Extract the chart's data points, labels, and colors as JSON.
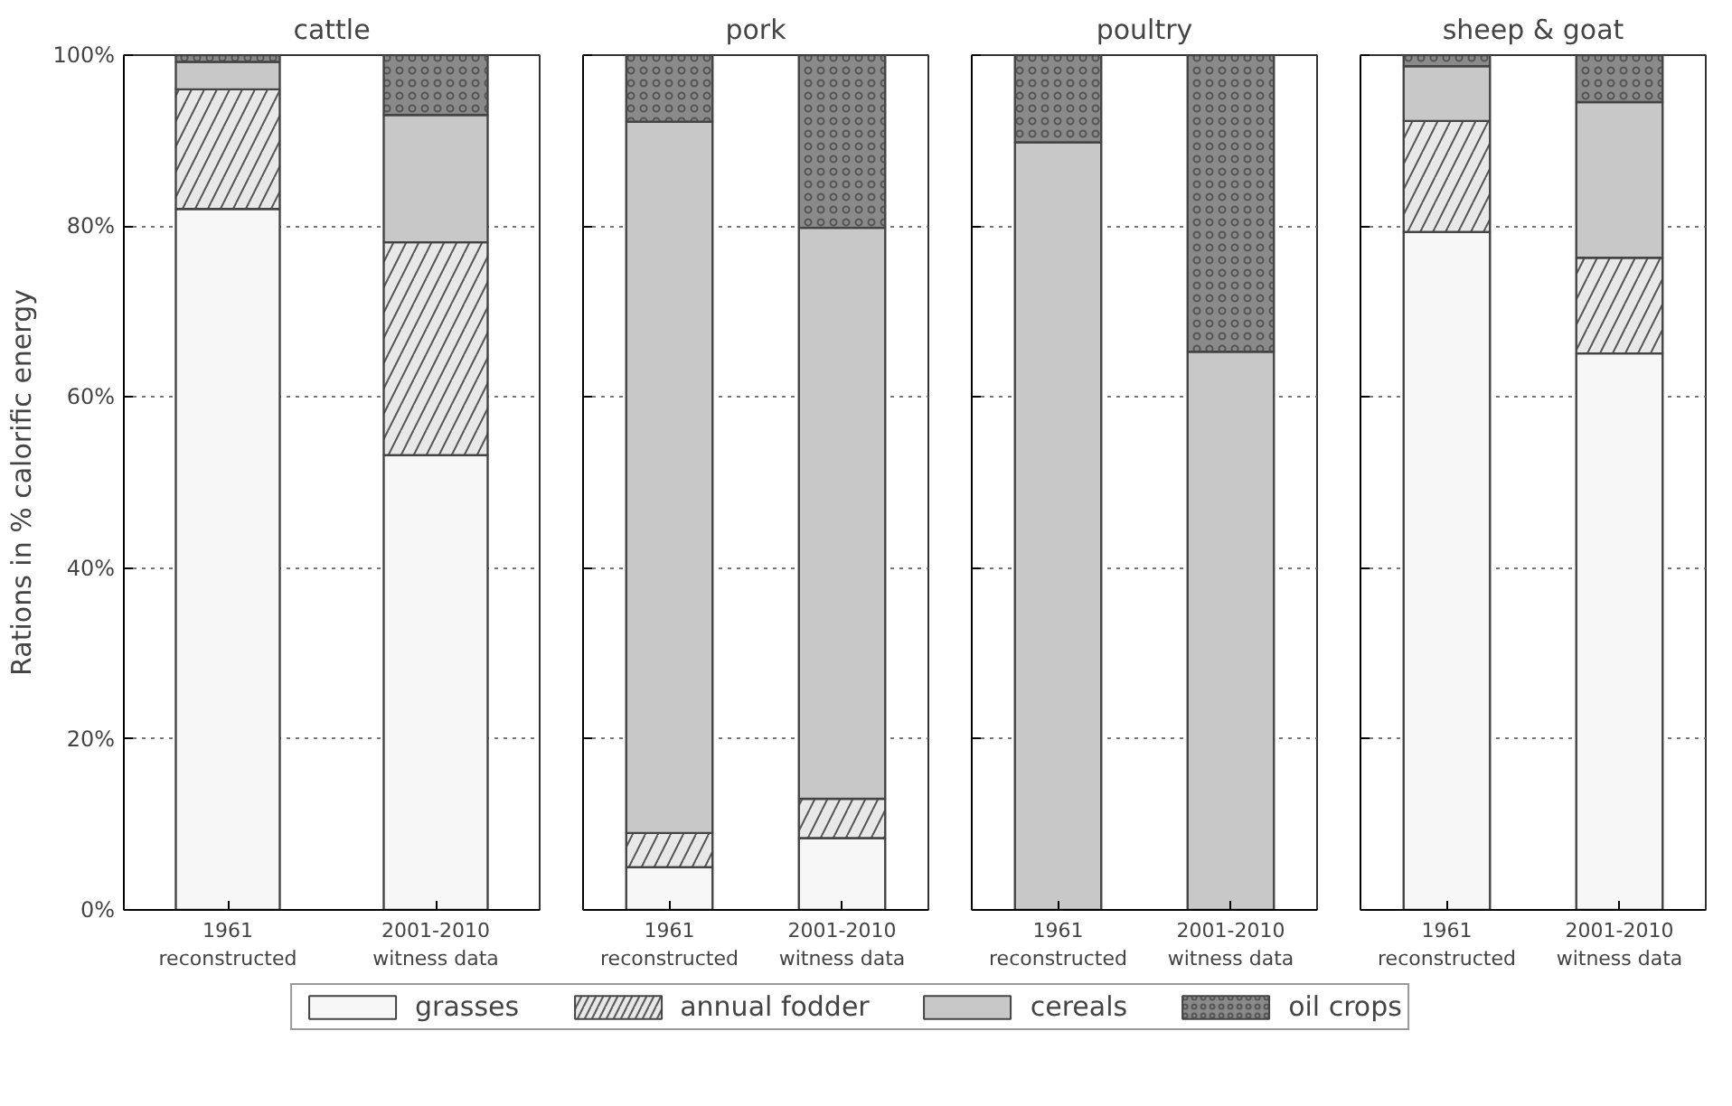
{
  "chart_data": [
    {
      "type": "bar",
      "title": "cattle",
      "ylabel": "Rations in % calorific energy",
      "categories": [
        "1961\nreconstructed",
        "2001-2010\nwitness data"
      ],
      "stacked": true,
      "ylim": [
        0,
        100
      ],
      "yticks": [
        {
          "value": 0,
          "label": "0%"
        },
        {
          "value": 20,
          "label": "20%"
        },
        {
          "value": 40,
          "label": "40%"
        },
        {
          "value": 60,
          "label": "60%"
        },
        {
          "value": 80,
          "label": "80%"
        },
        {
          "value": 100,
          "label": "100%"
        }
      ],
      "grid": true,
      "legend": "bottom",
      "series": [
        {
          "name": "grasses",
          "color": "#f7f7f7",
          "values": [
            82.0,
            53.2
          ]
        },
        {
          "name": "annual fodder",
          "color": "#e8e8e8",
          "values": [
            14.0,
            24.9
          ]
        },
        {
          "name": "cereals",
          "color": "#c8c8c8",
          "values": [
            3.2,
            14.9
          ]
        },
        {
          "name": "oil crops",
          "color": "#8a8a8a",
          "values": [
            0.8,
            7.0
          ]
        }
      ]
    },
    {
      "type": "bar",
      "title": "pork",
      "categories": [
        "1961\nreconstructed",
        "2001-2010\nwitness data"
      ],
      "stacked": true,
      "ylim": [
        0,
        100
      ],
      "yticks": [
        {
          "value": 0,
          "label": null
        },
        {
          "value": 20,
          "label": null
        },
        {
          "value": 40,
          "label": null
        },
        {
          "value": 60,
          "label": null
        },
        {
          "value": 80,
          "label": null
        },
        {
          "value": 100,
          "label": null
        }
      ],
      "grid": true,
      "tick_labels": "x",
      "series": [
        {
          "color": "#f7f7f7",
          "values": [
            5.0,
            8.4
          ]
        },
        {
          "color": "#e8e8e8",
          "values": [
            4.0,
            4.6
          ]
        },
        {
          "color": "#c8c8c8",
          "values": [
            83.2,
            66.8
          ]
        },
        {
          "color": "#8a8a8a",
          "values": [
            7.8,
            20.2
          ]
        }
      ]
    },
    {
      "type": "bar",
      "title": "poultry",
      "categories": [
        "1961\nreconstructed",
        "2001-2010\nwitness data"
      ],
      "stacked": true,
      "ylim": [
        0,
        100
      ],
      "yticks": [
        {
          "value": 0,
          "label": null
        },
        {
          "value": 20,
          "label": null
        },
        {
          "value": 40,
          "label": null
        },
        {
          "value": 60,
          "label": null
        },
        {
          "value": 80,
          "label": null
        },
        {
          "value": 100,
          "label": null
        }
      ],
      "grid": true,
      "tick_labels": "x",
      "series": [
        {
          "color": "#f7f7f7",
          "values": [
            0,
            0
          ]
        },
        {
          "color": "#e8e8e8",
          "values": [
            0,
            0
          ]
        },
        {
          "color": "#c8c8c8",
          "values": [
            89.8,
            65.3
          ]
        },
        {
          "color": "#8a8a8a",
          "values": [
            10.2,
            34.7
          ]
        }
      ]
    },
    {
      "type": "bar",
      "title": "sheep & goat",
      "categories": [
        "1961\nreconstructed",
        "2001-2010\nwitness data"
      ],
      "stacked": true,
      "ylim": [
        0,
        100
      ],
      "yticks": [
        {
          "value": 0,
          "label": null
        },
        {
          "value": 20,
          "label": null
        },
        {
          "value": 40,
          "label": null
        },
        {
          "value": 60,
          "label": null
        },
        {
          "value": 80,
          "label": null
        },
        {
          "value": 100,
          "label": null
        }
      ],
      "grid": true,
      "tick_labels": "x",
      "series": [
        {
          "color": "#f7f7f7",
          "values": [
            79.3,
            65.1
          ]
        },
        {
          "color": "#e8e8e8",
          "values": [
            13.0,
            11.2
          ]
        },
        {
          "color": "#c8c8c8",
          "values": [
            6.4,
            18.2
          ]
        },
        {
          "color": "#8a8a8a",
          "values": [
            1.3,
            5.5
          ]
        }
      ]
    }
  ]
}
